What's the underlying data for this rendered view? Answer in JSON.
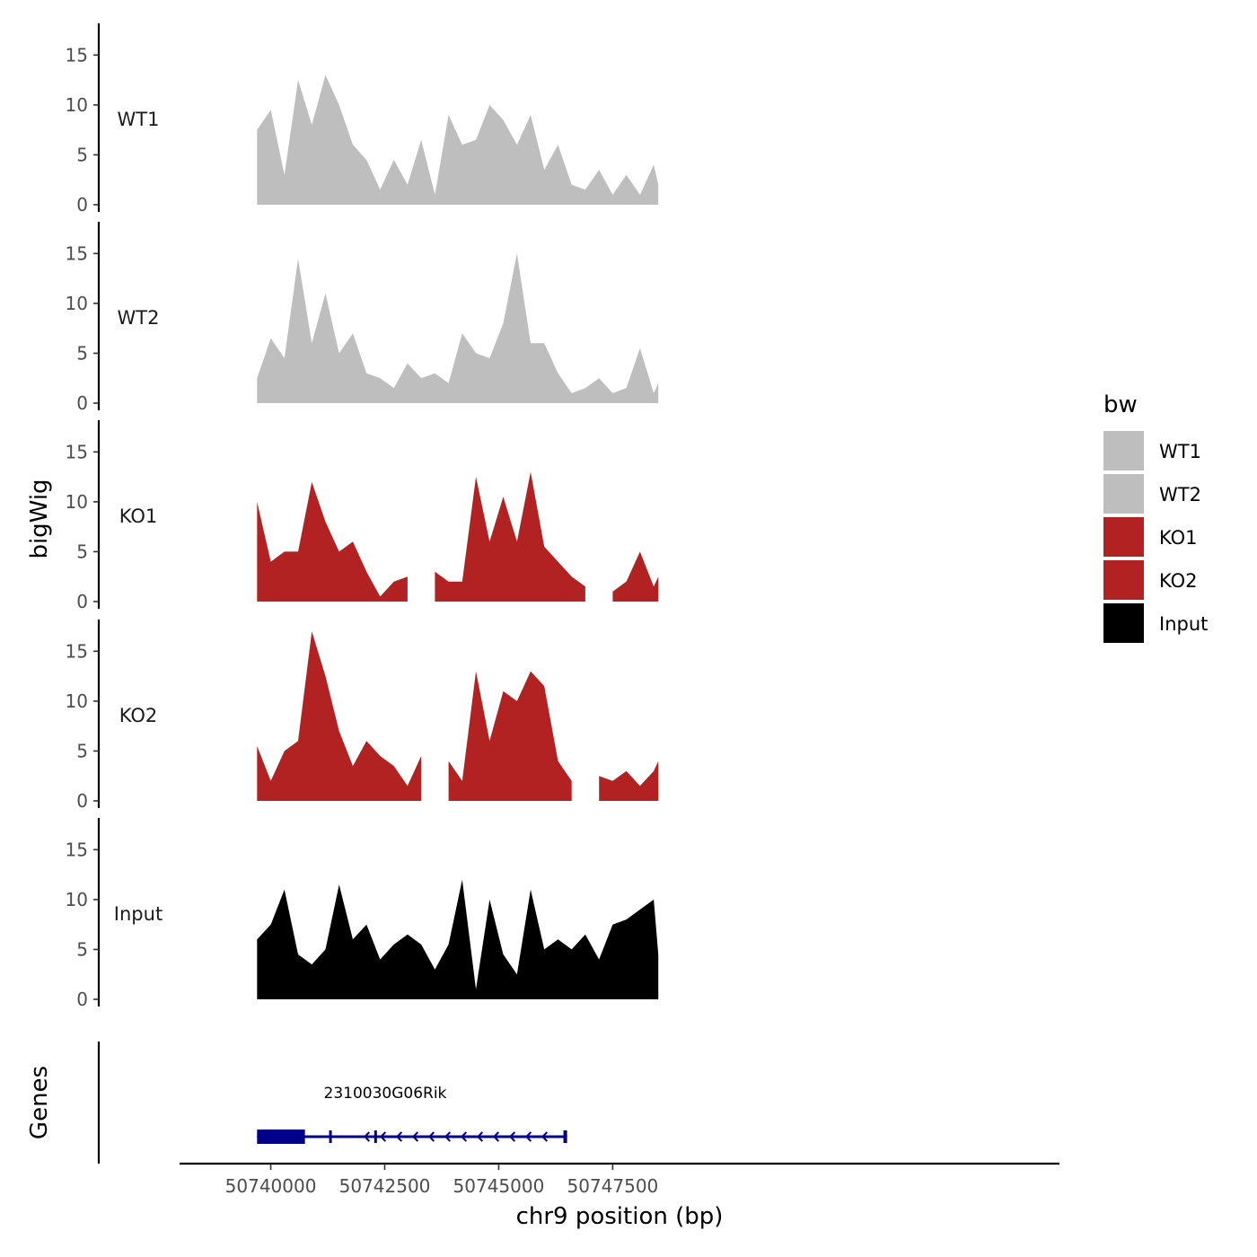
{
  "chart_data": {
    "type": "area",
    "ylabel": "bigWig",
    "xlabel": "chr9 position (bp)",
    "genes_label": "Genes",
    "xlim": [
      50738000,
      50757300
    ],
    "x_ticks": [
      50740000,
      50742500,
      50745000,
      50747500
    ],
    "x_tick_labels": [
      "50740000",
      "50742500",
      "50745000",
      "50747500"
    ],
    "ylim": [
      0,
      18
    ],
    "y_ticks": [
      0,
      5,
      10,
      15
    ],
    "y_tick_labels": [
      "0",
      "5",
      "10",
      "15"
    ],
    "legend": {
      "title": "bw",
      "position": "right",
      "entries": [
        {
          "label": "WT1",
          "color": "#BEBEBE"
        },
        {
          "label": "WT2",
          "color": "#BEBEBE"
        },
        {
          "label": "KO1",
          "color": "#B22222"
        },
        {
          "label": "KO2",
          "color": "#B22222"
        },
        {
          "label": "Input",
          "color": "#000000"
        }
      ]
    },
    "x": [
      50739700,
      50740000,
      50740300,
      50740600,
      50740900,
      50741200,
      50741500,
      50741800,
      50742100,
      50742400,
      50742700,
      50743000,
      50743300,
      50743600,
      50743900,
      50744200,
      50744500,
      50744800,
      50745100,
      50745400,
      50745700,
      50746000,
      50746300,
      50746600,
      50746900,
      50747200,
      50747500,
      50747800,
      50748100,
      50748400,
      50748500
    ],
    "series": [
      {
        "name": "WT1",
        "color": "#BEBEBE",
        "values": [
          7.5,
          9.5,
          3,
          12.5,
          8,
          13,
          10,
          6,
          4.5,
          1.5,
          4.5,
          2,
          6.5,
          1,
          9,
          6,
          6.5,
          10,
          8.5,
          6,
          9,
          3.5,
          6,
          2,
          1.5,
          3.5,
          1,
          3,
          1,
          4,
          2
        ]
      },
      {
        "name": "WT2",
        "color": "#BEBEBE",
        "values": [
          2.5,
          6.5,
          4.5,
          14.5,
          6,
          11,
          5,
          7,
          3,
          2.5,
          1.5,
          4,
          2.5,
          3,
          2,
          7,
          5,
          4.5,
          8,
          15,
          6,
          6,
          3,
          1,
          1.5,
          2.5,
          1,
          1.5,
          5.5,
          1,
          2
        ]
      },
      {
        "name": "KO1",
        "color": "#B22222",
        "values": [
          10,
          4,
          5,
          5,
          12,
          8,
          5,
          6,
          3,
          0.5,
          2,
          2.5,
          null,
          3,
          2,
          2,
          12.5,
          6,
          10.5,
          6,
          13,
          5.5,
          4,
          2.5,
          1.5,
          null,
          1,
          2,
          5,
          1.5,
          2.5
        ]
      },
      {
        "name": "KO2",
        "color": "#B22222",
        "values": [
          5.5,
          2,
          5,
          6,
          17,
          12.5,
          7,
          3.5,
          6,
          4.5,
          3.5,
          1.5,
          4.5,
          null,
          4,
          2,
          13,
          6,
          11,
          10,
          13,
          11.5,
          4,
          2,
          null,
          2.5,
          2,
          3,
          1.5,
          3,
          4
        ]
      },
      {
        "name": "Input",
        "color": "#000000",
        "values": [
          6,
          7.5,
          11,
          4.5,
          3.5,
          5,
          11.5,
          6,
          7.5,
          4,
          5.5,
          6.5,
          5.5,
          3,
          5.5,
          12,
          1,
          10,
          4.5,
          2.5,
          11,
          5,
          6,
          5,
          6.5,
          4,
          7.5,
          8,
          9,
          10,
          4.5
        ]
      }
    ],
    "gene": {
      "name": "2310030G06Rik",
      "color": "#00008B",
      "start": 50739700,
      "end": 50746500,
      "strand": "-",
      "exons": [
        [
          50739700,
          50740750
        ],
        [
          50741280,
          50741330
        ],
        [
          50742270,
          50742300
        ],
        [
          50746420,
          50746500
        ]
      ]
    }
  }
}
